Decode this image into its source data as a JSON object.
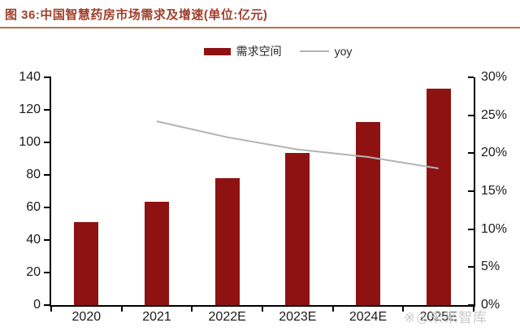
{
  "page": {
    "title": "图 36:中国智慧药房市场需求及增速(单位:亿元)",
    "watermark": "※◎未来智库"
  },
  "legend": {
    "bars_label": "需求空间",
    "line_label": "yoy"
  },
  "chart_data": {
    "type": "bar",
    "subtype": "bar+line combo, dual axis",
    "title": "中国智慧药房市场需求及增速(单位:亿元)",
    "categories": [
      "2020",
      "2021",
      "2022E",
      "2023E",
      "2024E",
      "2025E"
    ],
    "series": [
      {
        "name": "需求空间",
        "type": "bar",
        "axis": "left",
        "values": [
          51,
          63.5,
          78,
          93.5,
          112.5,
          133
        ]
      },
      {
        "name": "yoy",
        "type": "line",
        "axis": "right",
        "values": [
          null,
          24.2,
          22.1,
          20.5,
          19.5,
          18.0
        ]
      }
    ],
    "left_axis": {
      "min": 0,
      "max": 140,
      "step": 20,
      "ticks": [
        "0",
        "20",
        "40",
        "60",
        "80",
        "100",
        "120",
        "140"
      ]
    },
    "right_axis": {
      "min": 0,
      "max": 30,
      "step": 5,
      "ticks": [
        "0%",
        "5%",
        "10%",
        "15%",
        "20%",
        "25%",
        "30%"
      ]
    },
    "grid": "off",
    "legend_position": "top-center",
    "colors": {
      "bar": "#8e1211",
      "line": "#b3b3b3",
      "title": "#9f3f2b",
      "underline": "#b5714b",
      "axis": "#000000",
      "label": "#1a1a1a",
      "watermark": "#c9c9c9"
    }
  }
}
